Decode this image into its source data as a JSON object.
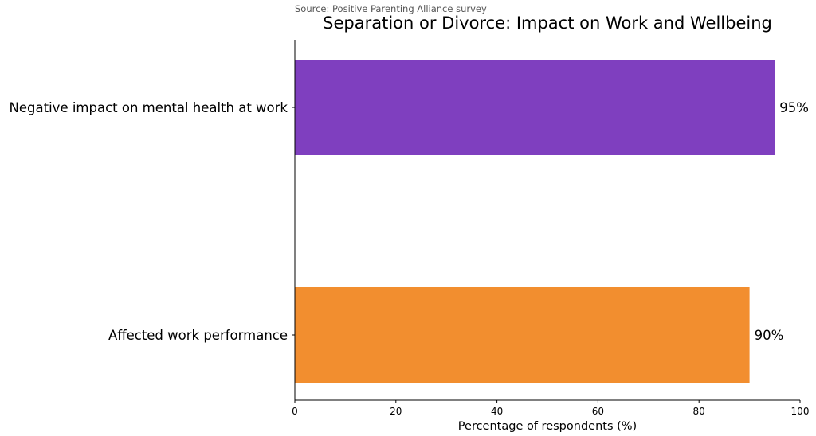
{
  "chart_data": {
    "type": "bar",
    "orientation": "horizontal",
    "source_note": "Source: Positive Parenting Alliance survey",
    "title": "Separation or Divorce: Impact on Work and Wellbeing",
    "xlabel": "Percentage of respondents (%)",
    "ylabel": "",
    "xlim": [
      0,
      100
    ],
    "x_ticks": [
      0,
      20,
      40,
      60,
      80,
      100
    ],
    "categories": [
      "Negative impact on mental health at work",
      "Affected work performance"
    ],
    "values": [
      95,
      90
    ],
    "data_labels": [
      "95%",
      "90%"
    ],
    "colors": [
      "#7f3fbf",
      "#f28e2f"
    ],
    "grid": false,
    "legend": "none"
  }
}
